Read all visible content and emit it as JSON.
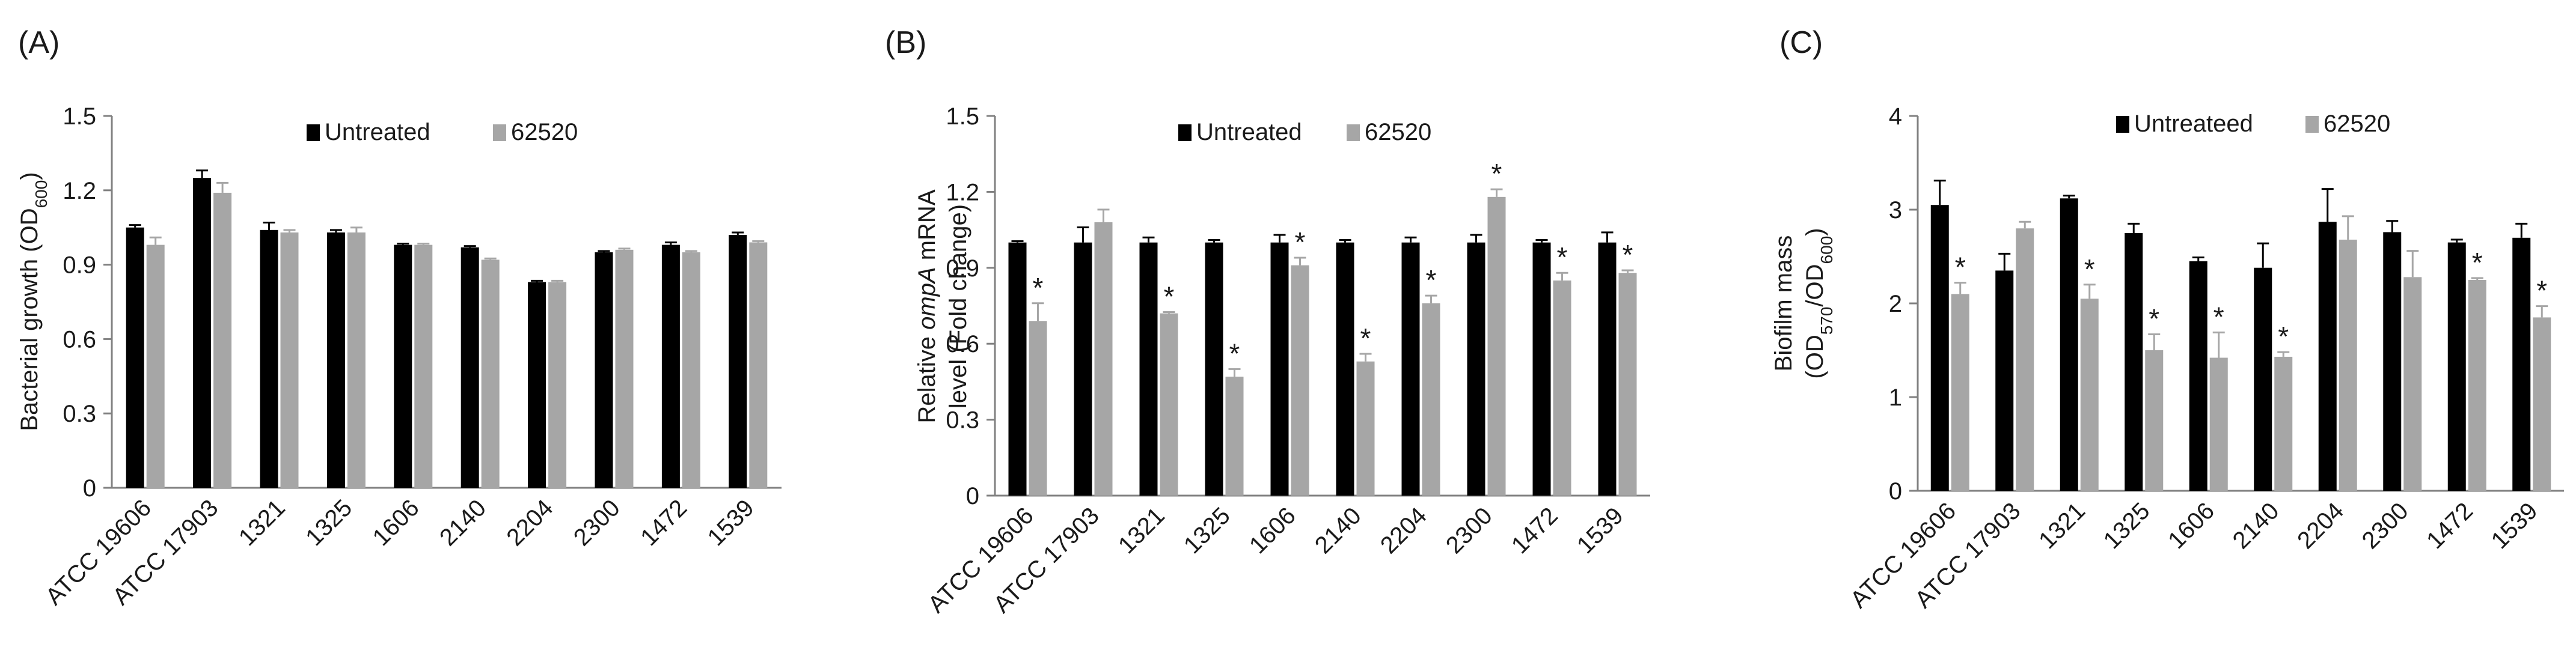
{
  "colors": {
    "untreated": "#000000",
    "treated": "#a6a6a6",
    "axis": "#808080"
  },
  "chart_data": [
    {
      "type": "bar",
      "panel_label": "(A)",
      "categories": [
        "ATCC 19606",
        "ATCC 17903",
        "1321",
        "1325",
        "1606",
        "2140",
        "2204",
        "2300",
        "1472",
        "1539"
      ],
      "ylabel": {
        "main": "Bacterial growth (OD",
        "sub": "600",
        "end": ")"
      },
      "ylim": [
        0,
        1.5
      ],
      "yticks": [
        "0",
        "0.3",
        "0.6",
        "0.9",
        "1.2",
        "1.5"
      ],
      "legend": [
        "Untreated",
        "62520"
      ],
      "legend_position": "top-right",
      "series": [
        {
          "name": "Untreated",
          "values": [
            1.05,
            1.25,
            1.04,
            1.03,
            0.98,
            0.97,
            0.83,
            0.95,
            0.98,
            1.02
          ],
          "errors": [
            0.01,
            0.03,
            0.03,
            0.01,
            0.005,
            0.005,
            0.005,
            0.005,
            0.01,
            0.01
          ],
          "significant": [
            false,
            false,
            false,
            false,
            false,
            false,
            false,
            false,
            false,
            false
          ]
        },
        {
          "name": "62520",
          "values": [
            0.98,
            1.19,
            1.03,
            1.03,
            0.98,
            0.92,
            0.83,
            0.96,
            0.95,
            0.99
          ],
          "errors": [
            0.03,
            0.04,
            0.01,
            0.02,
            0.005,
            0.005,
            0.005,
            0.005,
            0.005,
            0.005
          ],
          "significant": [
            false,
            false,
            false,
            false,
            false,
            false,
            false,
            false,
            false,
            false
          ]
        }
      ]
    },
    {
      "type": "bar",
      "panel_label": "(B)",
      "categories": [
        "ATCC 19606",
        "ATCC 17903",
        "1321",
        "1325",
        "1606",
        "2140",
        "2204",
        "2300",
        "1472",
        "1539"
      ],
      "ylabel": {
        "line1": "Relative ompA mRNA",
        "line1_italic": "ompA",
        "line2": "level (Fold change)"
      },
      "ylim": [
        0,
        1.5
      ],
      "yticks": [
        "0",
        "0.3",
        "0.6",
        "0.9",
        "1.2",
        "1.5"
      ],
      "legend": [
        "Untreated",
        "62520"
      ],
      "legend_position": "top-right",
      "significance_marker": "*",
      "series": [
        {
          "name": "Untreated",
          "values": [
            1.0,
            1.0,
            1.0,
            1.0,
            1.0,
            1.0,
            1.0,
            1.0,
            1.0,
            1.0
          ],
          "errors": [
            0.005,
            0.06,
            0.02,
            0.01,
            0.03,
            0.01,
            0.02,
            0.03,
            0.01,
            0.04
          ],
          "significant": [
            false,
            false,
            false,
            false,
            false,
            false,
            false,
            false,
            false,
            false
          ]
        },
        {
          "name": "62520",
          "values": [
            0.69,
            1.08,
            0.72,
            0.47,
            0.91,
            0.53,
            0.76,
            1.18,
            0.85,
            0.88
          ],
          "errors": [
            0.07,
            0.05,
            0.005,
            0.03,
            0.03,
            0.03,
            0.03,
            0.03,
            0.03,
            0.01
          ],
          "significant": [
            true,
            false,
            true,
            true,
            true,
            true,
            true,
            true,
            true,
            true
          ]
        }
      ]
    },
    {
      "type": "bar",
      "panel_label": "(C)",
      "categories": [
        "ATCC 19606",
        "ATCC 17903",
        "1321",
        "1325",
        "1606",
        "2140",
        "2204",
        "2300",
        "1472",
        "1539"
      ],
      "ylabel": {
        "line1": "Biofilm mass",
        "line2_parts": [
          "(OD",
          "570",
          "/OD",
          "600",
          ")"
        ]
      },
      "ylim": [
        0,
        4
      ],
      "yticks": [
        "0",
        "1",
        "2",
        "3",
        "4"
      ],
      "legend": [
        "Untreateed",
        "62520"
      ],
      "legend_position": "top-right",
      "significance_marker": "*",
      "series": [
        {
          "name": "Untreateed",
          "values": [
            3.05,
            2.35,
            3.12,
            2.75,
            2.45,
            2.38,
            2.87,
            2.76,
            2.65,
            2.7
          ],
          "errors": [
            0.26,
            0.18,
            0.03,
            0.1,
            0.04,
            0.26,
            0.35,
            0.12,
            0.03,
            0.15
          ],
          "significant": [
            false,
            false,
            false,
            false,
            false,
            false,
            false,
            false,
            false,
            false
          ]
        },
        {
          "name": "62520",
          "values": [
            2.1,
            2.8,
            2.05,
            1.5,
            1.42,
            1.43,
            2.68,
            2.28,
            2.25,
            1.85
          ],
          "errors": [
            0.12,
            0.07,
            0.15,
            0.17,
            0.27,
            0.05,
            0.25,
            0.28,
            0.02,
            0.12
          ],
          "significant": [
            true,
            false,
            true,
            true,
            true,
            true,
            false,
            false,
            true,
            true
          ]
        }
      ]
    }
  ]
}
